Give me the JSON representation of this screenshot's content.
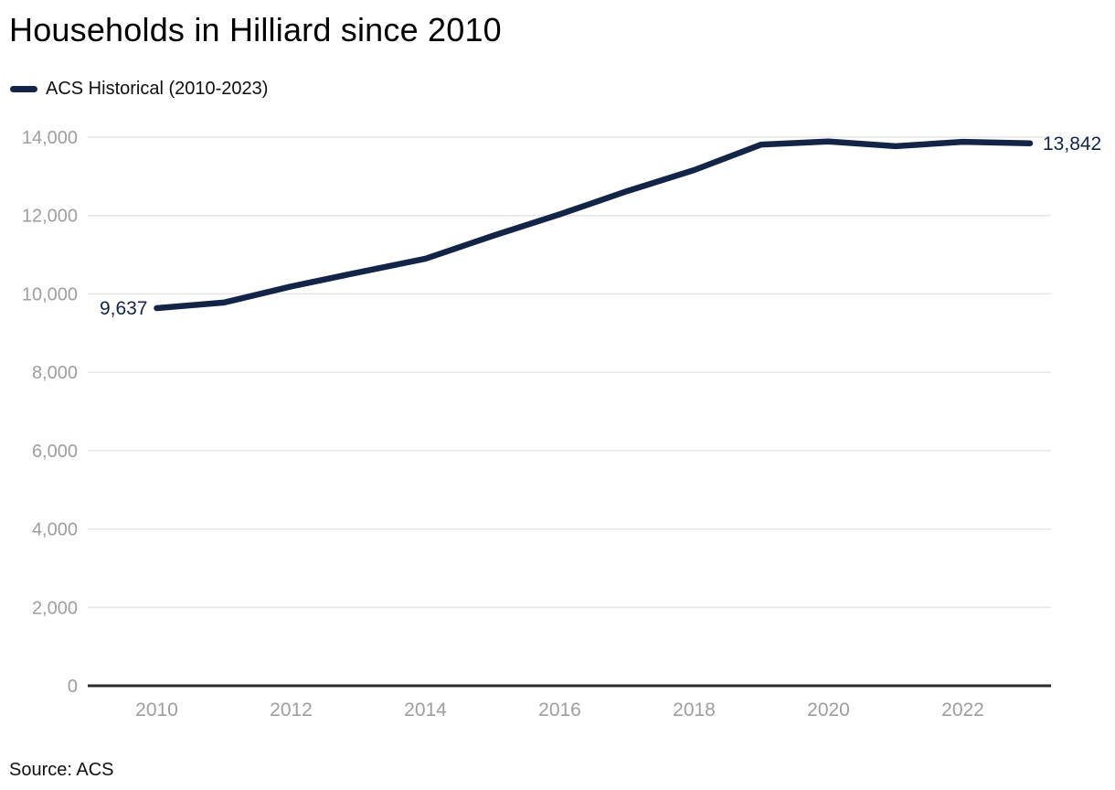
{
  "chart": {
    "title": "Households in Hilliard since 2010",
    "legend_label": "ACS Historical (2010-2023)",
    "source": "Source: ACS"
  },
  "chart_data": {
    "type": "line",
    "title": "Households in Hilliard since 2010",
    "series": [
      {
        "name": "ACS Historical (2010-2023)",
        "x": [
          2010,
          2011,
          2012,
          2013,
          2014,
          2015,
          2016,
          2017,
          2018,
          2019,
          2020,
          2021,
          2022,
          2023
        ],
        "values": [
          9637,
          9780,
          10190,
          10550,
          10900,
          11480,
          12030,
          12620,
          13160,
          13810,
          13890,
          13770,
          13880,
          13842
        ]
      }
    ],
    "point_labels": {
      "first": "9,637",
      "last": "13,842"
    },
    "xlabel": "",
    "ylabel": "",
    "x_ticks": [
      "2010",
      "2012",
      "2014",
      "2016",
      "2018",
      "2020",
      "2022"
    ],
    "y_ticks": [
      0,
      2000,
      4000,
      6000,
      8000,
      10000,
      12000,
      14000
    ],
    "y_tick_labels": [
      "0",
      "2,000",
      "4,000",
      "6,000",
      "8,000",
      "10,000",
      "12,000",
      "14,000"
    ],
    "xlim": [
      2010,
      2023
    ],
    "ylim": [
      0,
      14000
    ],
    "grid": true,
    "legend_position": "top-left",
    "colors": {
      "line": "#122448",
      "point_label": "#122448",
      "tick_label": "#9e9e9e",
      "gridline": "#e6e6e6",
      "axis_line": "#2b2b2b",
      "title": "#000000"
    }
  }
}
